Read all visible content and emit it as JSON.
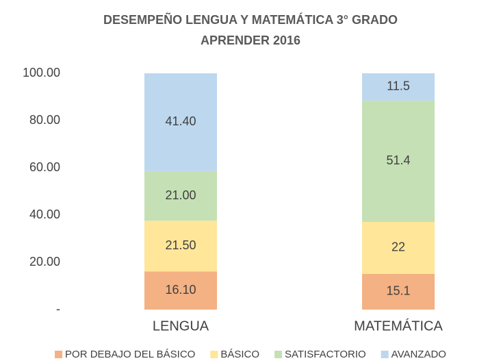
{
  "chart_data": {
    "type": "stacked_bar",
    "title": "DESEMPEÑO LENGUA Y MATEMÁTICA 3° GRADO",
    "subtitle": "APRENDER 2016",
    "categories": [
      "LENGUA",
      "MATEMÁTICA"
    ],
    "series": [
      {
        "name": "POR DEBAJO DEL BÁSICO",
        "color": "#F4B183",
        "values": [
          16.1,
          15.1
        ],
        "value_labels": [
          "16.10",
          "15.1"
        ]
      },
      {
        "name": "BÁSICO",
        "color": "#FFE699",
        "values": [
          21.5,
          22
        ],
        "value_labels": [
          "21.50",
          "22"
        ]
      },
      {
        "name": "SATISFACTORIO",
        "color": "#C5E0B4",
        "values": [
          21,
          51.4
        ],
        "value_labels": [
          "21.00",
          "51.4"
        ]
      },
      {
        "name": "AVANZADO",
        "color": "#BDD7EE",
        "values": [
          41.4,
          11.5
        ],
        "value_labels": [
          "41.40",
          "11.5"
        ]
      }
    ],
    "ylim": [
      0,
      100
    ],
    "yticks": [
      {
        "value": 0,
        "label": "-"
      },
      {
        "value": 20,
        "label": "20.00"
      },
      {
        "value": 40,
        "label": "40.00"
      },
      {
        "value": 60,
        "label": "60.00"
      },
      {
        "value": 80,
        "label": "80.00"
      },
      {
        "value": 100,
        "label": "100.00"
      }
    ],
    "grid": false,
    "legend": "bottom"
  }
}
